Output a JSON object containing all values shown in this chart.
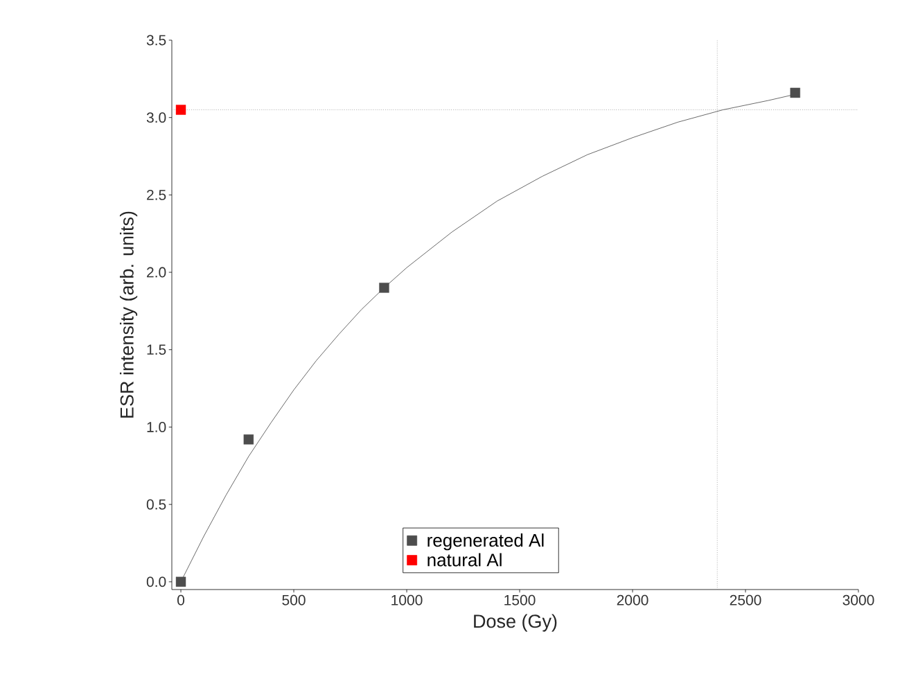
{
  "chart_data": {
    "type": "scatter",
    "xlabel": "Dose (Gy)",
    "ylabel": "ESR intensity (arb. units)",
    "xlim": [
      -40,
      3000
    ],
    "ylim": [
      -0.05,
      3.5
    ],
    "xticks": [
      0,
      500,
      1000,
      1500,
      2000,
      2500,
      3000
    ],
    "yticks": [
      {
        "value": 0,
        "label": "0.0"
      },
      {
        "value": 0.5,
        "label": "0.5"
      },
      {
        "value": 1,
        "label": "1.0"
      },
      {
        "value": 1.5,
        "label": "1.5"
      },
      {
        "value": 2,
        "label": "2.0"
      },
      {
        "value": 2.5,
        "label": "2.5"
      },
      {
        "value": 3,
        "label": "3.0"
      },
      {
        "value": 3.5,
        "label": "3.5"
      }
    ],
    "grid": false,
    "legend": "bottom",
    "marker": "square",
    "series": [
      {
        "type": "line",
        "marker": "none",
        "color": "#444444",
        "x": [
          0,
          100,
          200,
          300,
          400,
          500,
          600,
          700,
          800,
          900,
          1000,
          1200,
          1400,
          1600,
          1800,
          2000,
          2200,
          2400,
          2600,
          2720
        ],
        "values": [
          0,
          0.29,
          0.56,
          0.81,
          1.03,
          1.24,
          1.43,
          1.6,
          1.76,
          1.9,
          2.03,
          2.26,
          2.46,
          2.62,
          2.76,
          2.87,
          2.97,
          3.05,
          3.11,
          3.15
        ]
      },
      {
        "name": "regenerated Al",
        "color": "#4d4d4d",
        "x": [
          0,
          300,
          900,
          2720
        ],
        "values": [
          0,
          0.92,
          1.9,
          3.16
        ]
      },
      {
        "name": "natural Al",
        "color": "#ff0000",
        "x": [
          0
        ],
        "values": [
          3.05
        ]
      }
    ],
    "ref_lines": [
      {
        "axis": "y",
        "value": 3.05,
        "color": "#888888",
        "line_style": "dotted"
      },
      {
        "axis": "x",
        "value": 2375,
        "color": "#888888",
        "line_style": "dotted"
      }
    ]
  }
}
